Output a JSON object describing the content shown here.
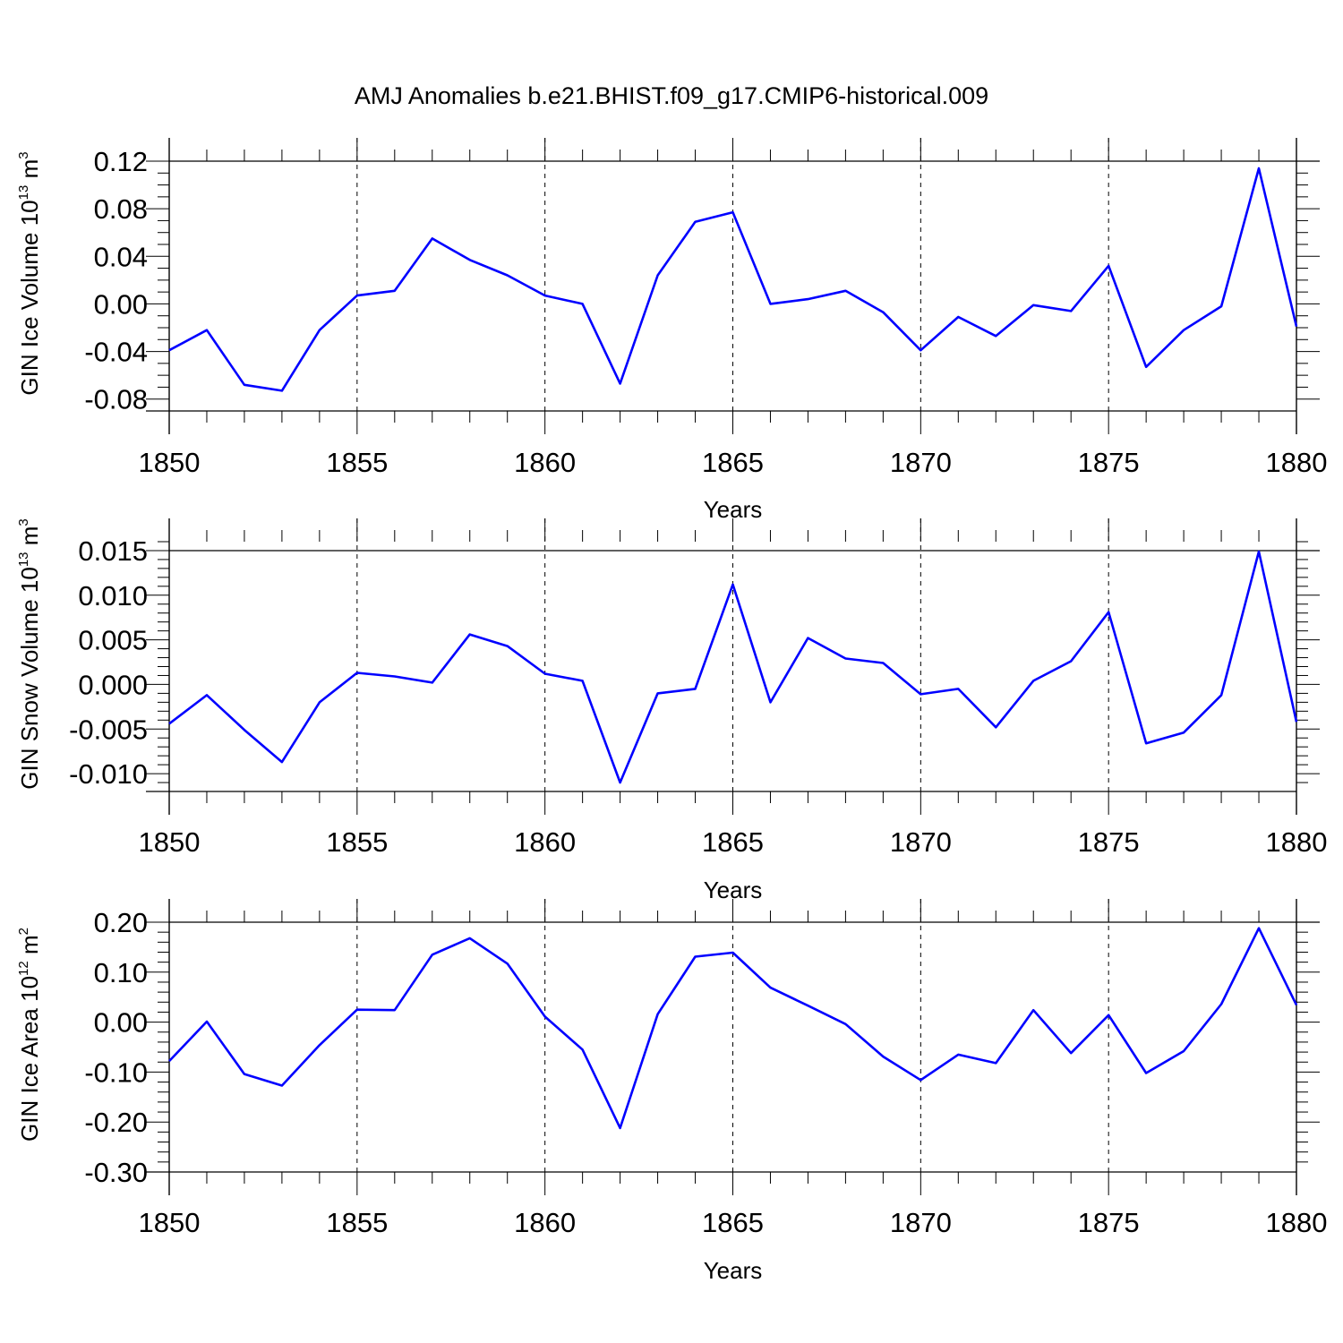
{
  "title": "AMJ Anomalies b.e21.BHIST.f09_g17.CMIP6-historical.009",
  "chart_data": [
    {
      "type": "line",
      "title": "",
      "xlabel": "Years",
      "ylabel": {
        "prefix": "GIN Ice Volume 10",
        "exponent": "13",
        "middle": " m",
        "unit_exponent": "3"
      },
      "xlim": [
        1850,
        1880
      ],
      "ylim": [
        -0.09,
        0.12
      ],
      "xticks": [
        1850,
        1855,
        1860,
        1865,
        1870,
        1875,
        1880
      ],
      "xtick_labels": [
        "1850",
        "1855",
        "1860",
        "1865",
        "1870",
        "1875",
        "1880"
      ],
      "yticks": [
        0.12,
        0.08,
        0.04,
        0.0,
        -0.04,
        -0.08
      ],
      "ytick_labels": [
        "0.12",
        "0.08",
        "0.04",
        "0.00",
        "-0.04",
        "-0.08"
      ],
      "y_minor_step": 0.01,
      "grid": "vertical-dashed",
      "color": "#0000ff",
      "x": [
        1850,
        1851,
        1852,
        1853,
        1854,
        1855,
        1856,
        1857,
        1858,
        1859,
        1860,
        1861,
        1862,
        1863,
        1864,
        1865,
        1866,
        1867,
        1868,
        1869,
        1870,
        1871,
        1872,
        1873,
        1874,
        1875,
        1876,
        1877,
        1878,
        1879,
        1880
      ],
      "values": [
        -0.039,
        -0.022,
        -0.068,
        -0.073,
        -0.022,
        0.007,
        0.011,
        0.055,
        0.037,
        0.024,
        0.007,
        0.0,
        -0.067,
        0.024,
        0.069,
        0.077,
        0.0,
        0.004,
        0.011,
        -0.007,
        -0.039,
        -0.011,
        -0.027,
        -0.001,
        -0.006,
        0.032,
        -0.053,
        -0.022,
        -0.002,
        0.114,
        -0.019
      ]
    },
    {
      "type": "line",
      "title": "",
      "xlabel": "Years",
      "ylabel": {
        "prefix": "GIN Snow Volume 10",
        "exponent": "13",
        "middle": " m",
        "unit_exponent": "3"
      },
      "xlim": [
        1850,
        1880
      ],
      "ylim": [
        -0.012,
        0.016
      ],
      "xticks": [
        1850,
        1855,
        1860,
        1865,
        1870,
        1875,
        1880
      ],
      "xtick_labels": [
        "1850",
        "1855",
        "1860",
        "1865",
        "1870",
        "1875",
        "1880"
      ],
      "yticks": [
        0.015,
        0.01,
        0.005,
        0.0,
        -0.005,
        -0.01
      ],
      "ytick_labels": [
        "0.015",
        "0.010",
        "0.005",
        "0.000",
        "-0.005",
        "-0.010"
      ],
      "y_minor_step": 0.001,
      "grid": "vertical-dashed",
      "color": "#0000ff",
      "x": [
        1850,
        1851,
        1852,
        1853,
        1854,
        1855,
        1856,
        1857,
        1858,
        1859,
        1860,
        1861,
        1862,
        1863,
        1864,
        1865,
        1866,
        1867,
        1868,
        1869,
        1870,
        1871,
        1872,
        1873,
        1874,
        1875,
        1876,
        1877,
        1878,
        1879,
        1880
      ],
      "values": [
        -0.0044,
        -0.0012,
        -0.0051,
        -0.0087,
        -0.002,
        0.0013,
        0.0009,
        0.0002,
        0.0056,
        0.0043,
        0.0012,
        0.0004,
        -0.011,
        -0.001,
        -0.0005,
        0.0112,
        -0.002,
        0.0052,
        0.0029,
        0.0024,
        -0.0011,
        -0.0005,
        -0.0048,
        0.0004,
        0.0026,
        0.0081,
        -0.0066,
        -0.0054,
        -0.0012,
        0.0149,
        -0.0042
      ]
    },
    {
      "type": "line",
      "title": "",
      "xlabel": "Years",
      "ylabel": {
        "prefix": "GIN Ice Area 10",
        "exponent": "12",
        "middle": " m",
        "unit_exponent": "2"
      },
      "xlim": [
        1850,
        1880
      ],
      "ylim": [
        -0.3,
        0.2
      ],
      "xticks": [
        1850,
        1855,
        1860,
        1865,
        1870,
        1875,
        1880
      ],
      "xtick_labels": [
        "1850",
        "1855",
        "1860",
        "1865",
        "1870",
        "1875",
        "1880"
      ],
      "yticks": [
        0.2,
        0.1,
        0.0,
        -0.1,
        -0.2,
        -0.3
      ],
      "ytick_labels": [
        "0.20",
        "0.10",
        "0.00",
        "-0.10",
        "-0.20",
        "-0.30"
      ],
      "y_minor_step": 0.02,
      "grid": "vertical-dashed",
      "color": "#0000ff",
      "x": [
        1850,
        1851,
        1852,
        1853,
        1854,
        1855,
        1856,
        1857,
        1858,
        1859,
        1860,
        1861,
        1862,
        1863,
        1864,
        1865,
        1866,
        1867,
        1868,
        1869,
        1870,
        1871,
        1872,
        1873,
        1874,
        1875,
        1876,
        1877,
        1878,
        1879,
        1880
      ],
      "values": [
        -0.078,
        0.001,
        -0.104,
        -0.127,
        -0.046,
        0.025,
        0.024,
        0.135,
        0.168,
        0.117,
        0.011,
        -0.055,
        -0.212,
        0.016,
        0.131,
        0.139,
        0.069,
        0.033,
        -0.004,
        -0.069,
        -0.116,
        -0.065,
        -0.082,
        0.024,
        -0.062,
        0.014,
        -0.102,
        -0.058,
        0.036,
        0.188,
        0.034
      ]
    }
  ]
}
